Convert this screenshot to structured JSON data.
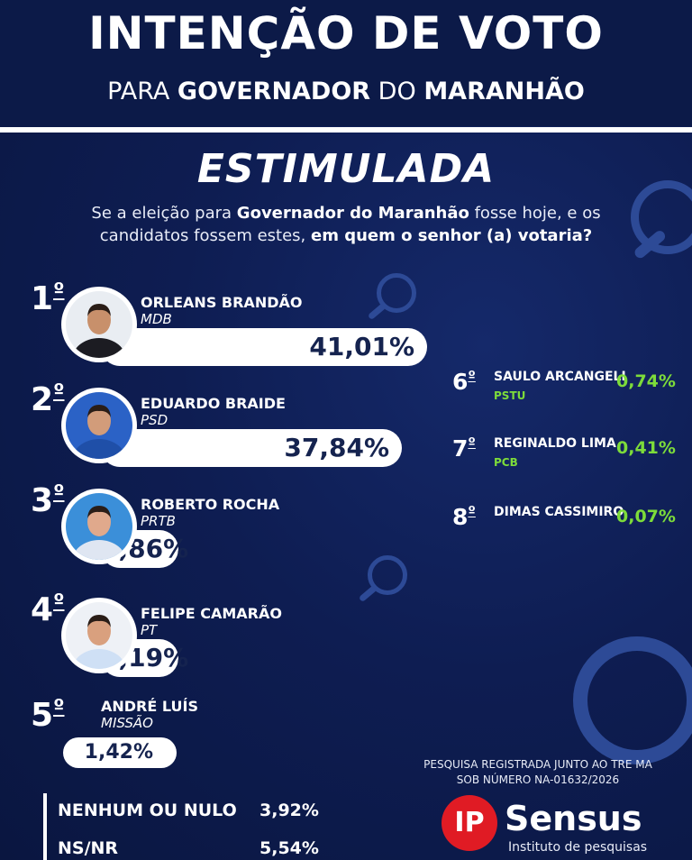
{
  "header": {
    "title": "INTENÇÃO DE VOTO",
    "subtitle_pre": "PARA ",
    "subtitle_bold1": "GOVERNADOR",
    "subtitle_mid": " DO ",
    "subtitle_bold2": "MARANHÃO"
  },
  "survey": {
    "type_label": "ESTIMULADA",
    "question_1": "Se a eleição para ",
    "question_2": "Governador do Maranhão",
    "question_3": " fosse hoje, e os candidatos fossem estes, ",
    "question_4": "em quem o senhor (a) votaria?"
  },
  "chart_data": {
    "type": "bar",
    "title": "INTENÇÃO DE VOTO",
    "categories": [
      "ORLEANS BRANDÃO",
      "EDUARDO BRAIDE",
      "ROBERTO ROCHA",
      "FELIPE CAMARÃO",
      "ANDRÉ LUÍS",
      "SAULO ARCANGELI",
      "REGINALDO LIMA",
      "DIMAS CASSIMIRO"
    ],
    "values": [
      41.01,
      37.84,
      4.86,
      4.19,
      1.42,
      0.74,
      0.41,
      0.07
    ],
    "units": "%"
  },
  "candidates": [
    {
      "rank": "1",
      "ord": "º",
      "name": "ORLEANS BRANDÃO",
      "party": "MDB",
      "value": 41.01,
      "pct_label": "41,01%",
      "skin": "#c8906b",
      "shirt": "#1c1c22",
      "bg": "#e9edf2"
    },
    {
      "rank": "2",
      "ord": "º",
      "name": "EDUARDO BRAIDE",
      "party": "PSD",
      "value": 37.84,
      "pct_label": "37,84%",
      "skin": "#d29c7a",
      "shirt": "#1f4fa8",
      "bg": "#2b62c6"
    },
    {
      "rank": "3",
      "ord": "º",
      "name": "ROBERTO ROCHA",
      "party": "PRTB",
      "value": 4.86,
      "pct_label": "4,86%",
      "skin": "#e0a98c",
      "shirt": "#dfe6f2",
      "bg": "#3b8fd9"
    },
    {
      "rank": "4",
      "ord": "º",
      "name": "FELIPE CAMARÃO",
      "party": "PT",
      "value": 4.19,
      "pct_label": "4,19%",
      "skin": "#d9a07e",
      "shirt": "#cfe0f5",
      "bg": "#eef1f6"
    },
    {
      "rank": "5",
      "ord": "º",
      "name": "ANDRÉ LUÍS",
      "party": "MISSÃO",
      "value": 1.42,
      "pct_label": "1,42%"
    }
  ],
  "others": [
    {
      "rank": "6",
      "ord": "º",
      "name": "SAULO ARCANGELI",
      "party": "PSTU",
      "pct_label": "0,74%"
    },
    {
      "rank": "7",
      "ord": "º",
      "name": "REGINALDO LIMA",
      "party": "PCB",
      "pct_label": "0,41%"
    },
    {
      "rank": "8",
      "ord": "º",
      "name": "DIMAS CASSIMIRO",
      "party": "",
      "pct_label": "0,07%"
    }
  ],
  "non_votes": [
    {
      "label": "NENHUM OU NULO",
      "pct_label": "3,92%"
    },
    {
      "label": "NS/NR",
      "pct_label": "5,54%"
    }
  ],
  "footer": {
    "registro_1": "PESQUISA REGISTRADA JUNTO AO TRE MA",
    "registro_2": "SOB NÚMERO NA-01632/2026",
    "logo_mark": "IP",
    "logo_name": "Sensus",
    "logo_sub": "Instituto de pesquisas"
  },
  "colors": {
    "background": "#0d1b4a",
    "bar": "#ffffff",
    "percent_text": "#15234f",
    "accent_green": "#7ddc3a",
    "logo_red": "#e01b24"
  }
}
